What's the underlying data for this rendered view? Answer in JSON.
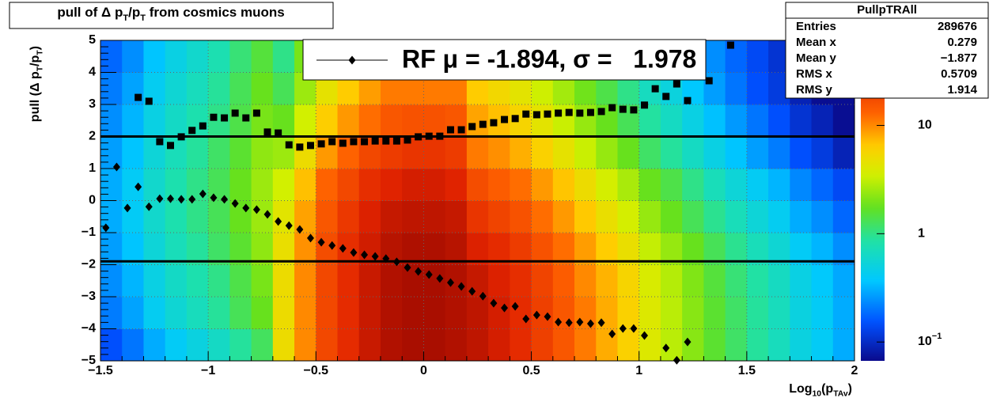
{
  "chart_data": {
    "type": "heatmap",
    "title_parts": [
      "pull of Δ p",
      "T",
      "/p",
      "T",
      " from cosmics muons"
    ],
    "xlabel_parts": [
      "Log",
      "10",
      "(p",
      "TAv",
      ")"
    ],
    "ylabel_parts": [
      "pull (Δ p",
      "T",
      "/p",
      "T",
      ")"
    ],
    "xlim": [
      -1.5,
      2
    ],
    "ylim": [
      -5,
      5
    ],
    "xticks": [
      {
        "value": -1.5,
        "label": "−1.5"
      },
      {
        "value": -1,
        "label": "−1"
      },
      {
        "value": -0.5,
        "label": "−0.5"
      },
      0,
      0.5,
      1,
      1.5,
      2
    ],
    "yticks": [
      {
        "value": -5,
        "label": "−5"
      },
      {
        "value": -4,
        "label": "−4"
      },
      {
        "value": -3,
        "label": "−3"
      },
      {
        "value": -2,
        "label": "−2"
      },
      {
        "value": -1,
        "label": "−1"
      },
      0,
      1,
      2,
      3,
      4,
      5
    ],
    "grid": true,
    "xbins": [
      -1.5,
      -1.4,
      -1.3,
      -1.2,
      -1.1,
      -1.0,
      -0.9,
      -0.8,
      -0.7,
      -0.6,
      -0.5,
      -0.4,
      -0.3,
      -0.2,
      -0.1,
      0.0,
      0.1,
      0.2,
      0.3,
      0.4,
      0.5,
      0.6,
      0.7,
      0.8,
      0.9,
      1.0,
      1.1,
      1.2,
      1.3,
      1.4,
      1.5,
      1.6,
      1.7,
      1.8,
      1.9,
      2.0
    ],
    "ybins": [
      -5,
      -4,
      -3,
      -2,
      -1,
      0,
      1,
      2,
      3,
      4,
      5
    ],
    "z": [
      [
        0.15,
        0.2,
        0.3,
        0.4,
        0.5,
        0.65,
        0.9,
        1.25,
        5,
        10,
        18,
        26,
        35,
        42,
        45,
        45,
        42,
        38,
        32,
        26,
        20,
        15,
        11,
        8,
        6,
        4,
        3,
        2.2,
        1.6,
        1.2,
        0.9,
        0.7,
        0.5,
        0.4,
        0.3
      ],
      [
        0.21,
        0.28,
        0.42,
        0.56,
        0.7,
        0.91,
        1.3,
        1.8,
        5,
        10,
        18,
        26,
        35,
        42,
        45,
        45,
        42,
        38,
        32,
        26,
        20,
        15,
        11,
        8,
        6,
        4,
        3,
        2.2,
        1.6,
        1.2,
        0.9,
        0.7,
        0.5,
        0.4,
        0.3
      ],
      [
        0.24,
        0.32,
        0.48,
        0.64,
        0.8,
        1.0,
        1.4,
        2.0,
        5,
        10,
        18,
        26,
        35,
        42,
        45,
        45,
        42,
        36,
        30,
        25,
        19,
        14,
        10,
        7.6,
        5.7,
        3.8,
        2.9,
        2.1,
        1.5,
        1.1,
        0.86,
        0.67,
        0.48,
        0.38,
        0.29
      ],
      [
        0.27,
        0.36,
        0.54,
        0.72,
        0.9,
        1.2,
        1.6,
        2.3,
        4.8,
        9.5,
        17,
        25,
        33,
        40,
        43,
        43,
        40,
        30,
        26,
        21,
        16,
        12,
        8.8,
        6.4,
        4.8,
        3.2,
        2.4,
        1.8,
        1.3,
        0.96,
        0.72,
        0.56,
        0.4,
        0.32,
        0.24
      ],
      [
        0.3,
        0.4,
        0.6,
        0.8,
        1.0,
        1.3,
        1.8,
        2.5,
        4.3,
        8.5,
        15,
        22,
        30,
        36,
        38,
        38,
        36,
        23,
        19,
        16,
        12,
        9,
        6.6,
        4.8,
        3.6,
        2.4,
        1.8,
        1.3,
        0.96,
        0.72,
        0.54,
        0.42,
        0.3,
        0.24,
        0.18
      ],
      [
        0.3,
        0.4,
        0.6,
        0.8,
        1.0,
        1.3,
        1.8,
        2.5,
        3.5,
        7,
        13,
        18,
        25,
        29,
        32,
        32,
        29,
        17,
        14,
        12,
        9,
        6.8,
        5,
        3.6,
        2.7,
        1.8,
        1.4,
        1.0,
        0.72,
        0.54,
        0.41,
        0.32,
        0.23,
        0.18,
        0.14
      ],
      [
        0.27,
        0.36,
        0.54,
        0.72,
        0.9,
        1.2,
        1.6,
        2.3,
        2.5,
        5,
        9,
        13,
        18,
        21,
        23,
        23,
        21,
        11,
        9.6,
        7.8,
        6,
        4.5,
        3.3,
        2.4,
        1.8,
        1.2,
        0.9,
        0.66,
        0.48,
        0.36,
        0.27,
        0.21,
        0.15,
        0.12,
        0.09
      ],
      [
        0.24,
        0.32,
        0.48,
        0.64,
        0.8,
        1.0,
        1.4,
        2.0,
        1.8,
        3.5,
        6.3,
        9.1,
        12,
        15,
        16,
        16,
        15,
        8.4,
        7,
        5.7,
        4.4,
        3.3,
        2.4,
        1.8,
        1.3,
        0.88,
        0.66,
        0.48,
        0.35,
        0.26,
        0.2,
        0.15,
        0.11,
        0.09,
        0.07
      ],
      [
        0.21,
        0.28,
        0.42,
        0.56,
        0.7,
        0.91,
        1.3,
        1.8,
        1.3,
        2.5,
        4.5,
        6.5,
        8.8,
        11,
        11,
        11,
        11,
        6.5,
        5.4,
        4.4,
        3.4,
        2.6,
        1.9,
        1.4,
        1.0,
        0.68,
        0.51,
        0.37,
        0.27,
        0.2,
        0.15,
        0.12,
        0.09,
        0.07,
        0.07
      ],
      [
        0.18,
        0.24,
        0.36,
        0.48,
        0.6,
        0.78,
        1.1,
        1.5,
        1,
        2,
        3.6,
        5.2,
        7,
        8.4,
        9,
        9,
        8.4,
        5.7,
        4.8,
        3.9,
        3,
        2.3,
        1.7,
        1.2,
        0.9,
        0.6,
        0.45,
        0.33,
        0.24,
        0.18,
        0.14,
        0.11,
        0.08,
        0.07,
        0.07
      ]
    ],
    "zlim": [
      0.067,
      61
    ],
    "zlog": true,
    "zticks": [
      {
        "value": 0.1,
        "label": "10",
        "sup": "−1"
      },
      1,
      10
    ],
    "x": [
      -1.475,
      -1.425,
      -1.375,
      -1.325,
      -1.275,
      -1.225,
      -1.175,
      -1.125,
      -1.075,
      -1.025,
      -0.975,
      -0.925,
      -0.875,
      -0.825,
      -0.775,
      -0.725,
      -0.675,
      -0.625,
      -0.575,
      -0.525,
      -0.475,
      -0.425,
      -0.375,
      -0.325,
      -0.275,
      -0.225,
      -0.175,
      -0.125,
      -0.075,
      -0.025,
      0.025,
      0.075,
      0.125,
      0.175,
      0.225,
      0.275,
      0.325,
      0.375,
      0.425,
      0.475,
      0.525,
      0.575,
      0.625,
      0.675,
      0.725,
      0.775,
      0.825,
      0.875,
      0.925,
      0.975,
      1.025,
      1.075,
      1.125,
      1.175,
      1.225,
      1.275,
      1.325,
      1.375,
      1.425
    ],
    "series": [
      {
        "name": "RF μ = -1.894, σ =   1.978",
        "marker": "diamond",
        "color": "#000000",
        "values": [
          -0.85,
          1.05,
          -0.23,
          0.43,
          -0.19,
          0.06,
          0.06,
          0.04,
          0.04,
          0.21,
          0.09,
          0.04,
          -0.09,
          -0.23,
          -0.28,
          -0.43,
          -0.65,
          -0.78,
          -0.9,
          -1.17,
          -1.3,
          -1.4,
          -1.49,
          -1.62,
          -1.69,
          -1.74,
          -1.81,
          -1.91,
          -2.09,
          -2.21,
          -2.31,
          -2.43,
          -2.56,
          -2.68,
          -2.83,
          -2.98,
          -3.2,
          -3.35,
          -3.3,
          -3.69,
          -3.57,
          -3.62,
          -3.79,
          -3.81,
          -3.79,
          -3.84,
          -3.81,
          -4.16,
          -3.99,
          -3.99,
          -4.21,
          null,
          -4.6,
          -4.98,
          -4.41,
          null,
          null,
          null,
          null
        ]
      },
      {
        "marker": "square",
        "color": "#000000",
        "values": [
          null,
          null,
          null,
          3.22,
          3.1,
          1.84,
          1.72,
          1.99,
          2.19,
          2.33,
          2.6,
          2.58,
          2.73,
          2.58,
          2.73,
          2.14,
          2.11,
          1.74,
          1.67,
          1.72,
          1.77,
          1.84,
          1.79,
          1.84,
          1.84,
          1.86,
          1.86,
          1.86,
          1.89,
          1.99,
          2.01,
          2.01,
          2.21,
          2.21,
          2.31,
          2.38,
          2.43,
          2.53,
          2.56,
          2.7,
          2.68,
          2.7,
          2.73,
          2.75,
          2.73,
          2.75,
          2.78,
          2.9,
          2.85,
          2.83,
          2.98,
          3.49,
          3.25,
          3.64,
          3.12,
          null,
          3.74,
          null,
          4.85
        ]
      }
    ],
    "hlines": [
      2,
      -1.894
    ],
    "stats": {
      "title": "PullpTRAll",
      "rows": [
        [
          "Entries",
          "289676"
        ],
        [
          "Mean x",
          "0.279"
        ],
        [
          "Mean y",
          "−1.877"
        ],
        [
          "RMS x",
          "0.5709"
        ],
        [
          "RMS y",
          "1.914"
        ]
      ]
    }
  }
}
